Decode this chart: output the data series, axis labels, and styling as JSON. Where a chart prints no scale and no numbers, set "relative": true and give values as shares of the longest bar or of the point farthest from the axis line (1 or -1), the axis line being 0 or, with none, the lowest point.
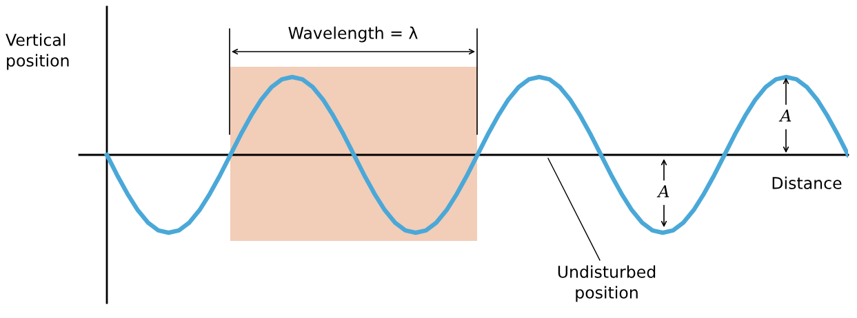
{
  "chart_data": {
    "type": "line",
    "relative": true,
    "ylabel": "Vertical\nposition",
    "xlabel": "Distance",
    "categories": [
      null,
      null,
      null,
      null,
      null,
      null,
      null,
      null,
      null,
      null,
      null,
      null,
      null,
      null,
      null,
      null,
      null,
      null,
      null,
      null,
      null,
      null,
      null,
      null,
      null,
      null,
      null,
      null,
      null,
      null,
      null,
      null,
      null,
      null,
      null,
      null,
      null,
      null,
      null,
      null,
      null,
      null,
      null,
      null,
      null,
      null,
      null,
      null,
      null,
      null,
      null,
      null,
      null,
      null,
      null,
      null,
      null,
      null,
      null,
      null,
      null,
      null,
      null,
      null,
      null,
      null,
      null,
      null,
      null,
      null,
      null,
      null,
      null
    ],
    "series": [
      {
        "color": "#4aa8d8",
        "values": [
          0,
          -0.26,
          -0.5,
          -0.71,
          -0.87,
          -0.97,
          -1,
          -0.97,
          -0.87,
          -0.71,
          -0.5,
          -0.26,
          0,
          0.26,
          0.5,
          0.71,
          0.87,
          0.97,
          1,
          0.97,
          0.87,
          0.71,
          0.5,
          0.26,
          0,
          -0.26,
          -0.5,
          -0.71,
          -0.87,
          -0.97,
          -1,
          -0.97,
          -0.87,
          -0.71,
          -0.5,
          -0.26,
          0,
          0.26,
          0.5,
          0.71,
          0.87,
          0.97,
          1,
          0.97,
          0.87,
          0.71,
          0.5,
          0.26,
          0,
          -0.26,
          -0.5,
          -0.71,
          -0.87,
          -0.97,
          -1,
          -0.97,
          -0.87,
          -0.71,
          -0.5,
          -0.26,
          0,
          0.26,
          0.5,
          0.71,
          0.87,
          0.97,
          1,
          0.97,
          0.87,
          0.71,
          0.5,
          0.26,
          0
        ]
      }
    ],
    "annotations": [
      "Wavelength = λ",
      "A",
      "A",
      "Undisturbed\nposition"
    ],
    "marker": "none",
    "line_style": "solid"
  }
}
